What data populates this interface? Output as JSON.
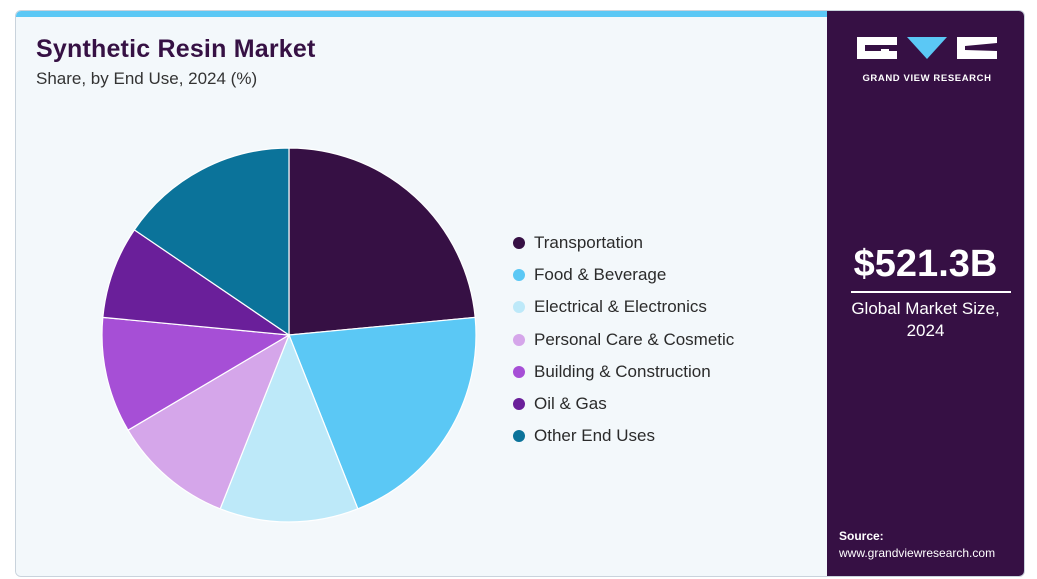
{
  "header": {
    "title": "Synthetic Resin Market",
    "subtitle": "Share, by End Use, 2024 (%)"
  },
  "brand": {
    "logo_text": "GRAND VIEW RESEARCH"
  },
  "summary": {
    "value": "$521.3B",
    "caption": "Global Market Size, 2024"
  },
  "source": {
    "label": "Source:",
    "url": "www.grandviewresearch.com"
  },
  "colors": {
    "accent_bar": "#5bc8f5",
    "side_panel": "#361044",
    "title": "#361144"
  },
  "chart_data": {
    "type": "pie",
    "title": "Synthetic Resin Market",
    "subtitle": "Share, by End Use, 2024 (%)",
    "legend_position": "right",
    "slices": [
      {
        "label": "Transportation",
        "value": 23.5,
        "color": "#361044"
      },
      {
        "label": "Food & Beverage",
        "value": 20.5,
        "color": "#5bc8f5"
      },
      {
        "label": "Electrical & Electronics",
        "value": 12.0,
        "color": "#bde9f9"
      },
      {
        "label": "Personal Care & Cosmetic",
        "value": 10.5,
        "color": "#d5a6ea"
      },
      {
        "label": "Building & Construction",
        "value": 10.0,
        "color": "#a64fd6"
      },
      {
        "label": "Oil & Gas",
        "value": 8.0,
        "color": "#6a1f9a"
      },
      {
        "label": "Other End Uses",
        "value": 15.5,
        "color": "#0b739a"
      }
    ]
  }
}
